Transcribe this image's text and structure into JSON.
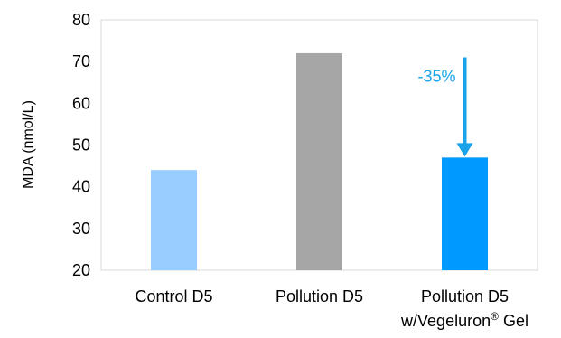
{
  "chart_data": {
    "type": "bar",
    "title": "",
    "xlabel": "",
    "ylabel": "MDA (nmol/L)",
    "ylim": [
      20,
      80
    ],
    "yticks": [
      20,
      30,
      40,
      50,
      60,
      70,
      80
    ],
    "categories": [
      {
        "line1": "Control D5",
        "line2": "",
        "sup": "",
        "line2_suffix": ""
      },
      {
        "line1": "Pollution D5",
        "line2": "",
        "sup": "",
        "line2_suffix": ""
      },
      {
        "line1": "Pollution D5",
        "line2": "w/Vegeluron",
        "sup": "®",
        "line2_suffix": " Gel"
      }
    ],
    "values": [
      44,
      72,
      47
    ],
    "bar_colors": [
      "#99CCFF",
      "#A6A6A6",
      "#0099FF"
    ],
    "grid": false,
    "legend": "none",
    "annotation": {
      "text": "-35%",
      "color": "#1AA3E8",
      "arrow_from_value": 71,
      "arrow_to_value": 47,
      "category_index": 2
    },
    "colors": {
      "axis": "#D9D9D9"
    }
  }
}
